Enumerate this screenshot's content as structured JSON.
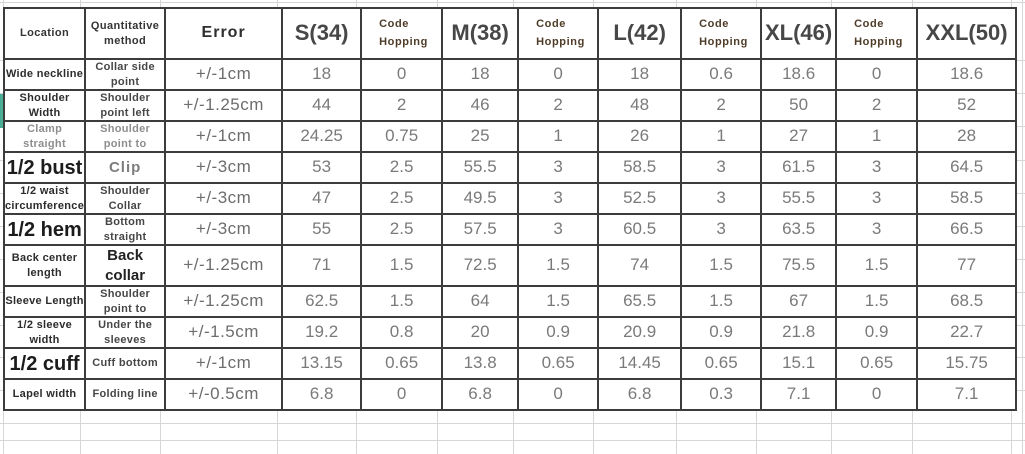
{
  "accent_colors": {
    "table_border": "#3c3c3c",
    "value_text": "#7a7a7a",
    "code_hopping_text": "#4e3c28",
    "faint_gridline": "#d6d6d6",
    "green_edge_marker": "#4aae96"
  },
  "chart_data": {
    "type": "table",
    "title": "",
    "columns": [
      "Location",
      "Quantitative method",
      "Error",
      "S(34)",
      "Code Hopping",
      "M(38)",
      "Code Hopping",
      "L(42)",
      "Code Hopping",
      "XL(46)",
      "Code Hopping",
      "XXL(50)"
    ],
    "rows": [
      {
        "location": "Wide neckline",
        "loc_style": "sm",
        "method": "Collar side point",
        "method_style": "sm",
        "error": "+/-1cm",
        "values": [
          "18",
          "0",
          "18",
          "0",
          "18",
          "0.6",
          "18.6",
          "0",
          "18.6"
        ]
      },
      {
        "location": "Shoulder Width",
        "loc_style": "sm",
        "method": "Shoulder point left",
        "method_style": "sm",
        "error": "+/-1.25cm",
        "values": [
          "44",
          "2",
          "46",
          "2",
          "48",
          "2",
          "50",
          "2",
          "52"
        ]
      },
      {
        "location": "Clamp straight",
        "loc_style": "gray",
        "method": "Shoulder point to",
        "method_style": "gray",
        "error": "+/-1cm",
        "values": [
          "24.25",
          "0.75",
          "25",
          "1",
          "26",
          "1",
          "27",
          "1",
          "28"
        ]
      },
      {
        "location": "1/2 bust",
        "loc_style": "lg",
        "method": "Clip",
        "method_style": "mdgray",
        "error": "+/-3cm",
        "values": [
          "53",
          "2.5",
          "55.5",
          "3",
          "58.5",
          "3",
          "61.5",
          "3",
          "64.5"
        ]
      },
      {
        "location": "1/2 waist circumference",
        "loc_style": "sm",
        "method": "Shoulder Collar",
        "method_style": "sm",
        "error": "+/-3cm",
        "values": [
          "47",
          "2.5",
          "49.5",
          "3",
          "52.5",
          "3",
          "55.5",
          "3",
          "58.5"
        ]
      },
      {
        "location": "1/2 hem",
        "loc_style": "lg",
        "method": "Bottom straight",
        "method_style": "sm",
        "error": "+/-3cm",
        "values": [
          "55",
          "2.5",
          "57.5",
          "3",
          "60.5",
          "3",
          "63.5",
          "3",
          "66.5"
        ]
      },
      {
        "location": "Back center length",
        "loc_style": "sm",
        "method": "Back collar",
        "method_style": "lg",
        "error": "+/-1.25cm",
        "values": [
          "71",
          "1.5",
          "72.5",
          "1.5",
          "74",
          "1.5",
          "75.5",
          "1.5",
          "77"
        ]
      },
      {
        "location": "Sleeve Length",
        "loc_style": "sm",
        "method": "Shoulder point to",
        "method_style": "sm",
        "error": "+/-1.25cm",
        "values": [
          "62.5",
          "1.5",
          "64",
          "1.5",
          "65.5",
          "1.5",
          "67",
          "1.5",
          "68.5"
        ]
      },
      {
        "location": "1/2 sleeve width",
        "loc_style": "sm",
        "method": "Under the sleeves",
        "method_style": "sm",
        "error": "+/-1.5cm",
        "values": [
          "19.2",
          "0.8",
          "20",
          "0.9",
          "20.9",
          "0.9",
          "21.8",
          "0.9",
          "22.7"
        ]
      },
      {
        "location": "1/2 cuff",
        "loc_style": "lg",
        "method": "Cuff bottom",
        "method_style": "sm",
        "error": "+/-1cm",
        "values": [
          "13.15",
          "0.65",
          "13.8",
          "0.65",
          "14.45",
          "0.65",
          "15.1",
          "0.65",
          "15.75"
        ]
      },
      {
        "location": "Lapel width",
        "loc_style": "sm",
        "method": "Folding line",
        "method_style": "sm",
        "error": "+/-0.5cm",
        "values": [
          "6.8",
          "0",
          "6.8",
          "0",
          "6.8",
          "0.3",
          "7.1",
          "0",
          "7.1"
        ]
      }
    ]
  }
}
